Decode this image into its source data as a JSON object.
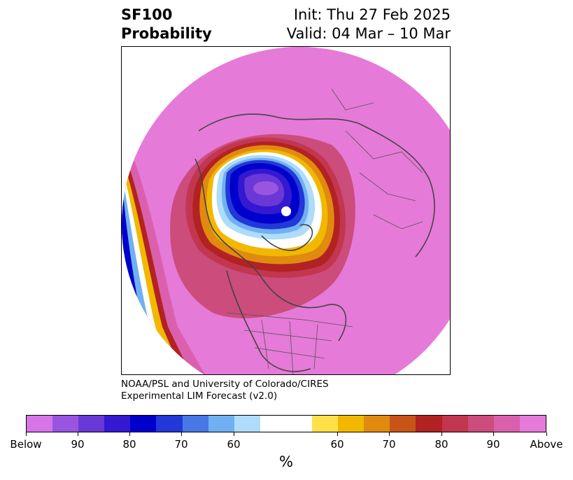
{
  "header": {
    "variable": "SF100",
    "subtitle": "Probability",
    "init": "Init: Thu 27 Feb 2025",
    "valid": "Valid: 04 Mar – 10 Mar"
  },
  "credit": {
    "line1": "NOAA/PSL and University of Colorado/CIRES",
    "line2": "Experimental LIM Forecast (v2.0)"
  },
  "colorbar": {
    "colors": [
      "#d674e8",
      "#9a55e0",
      "#6a38d6",
      "#3418d2",
      "#0000cc",
      "#2238d8",
      "#4878e6",
      "#70b0f2",
      "#aedcfa",
      "#ffffff",
      "#ffffff",
      "#ffe048",
      "#f2b800",
      "#e08a10",
      "#c85418",
      "#b22222",
      "#c23650",
      "#cc4c7c",
      "#da60ae",
      "#e67ad8"
    ],
    "tick_labels": [
      "Below",
      "90",
      "80",
      "70",
      "60",
      "60",
      "70",
      "80",
      "90",
      "Above"
    ],
    "unit": "%"
  }
}
